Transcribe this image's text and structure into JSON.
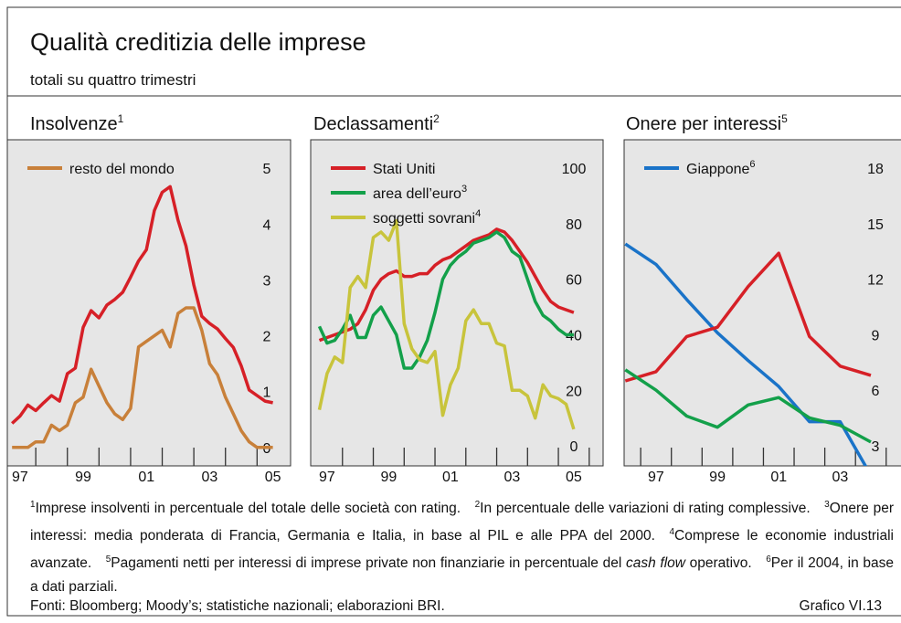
{
  "header": {
    "title": "Qualità creditizia delle imprese",
    "subtitle": "totali su quattro trimestri"
  },
  "chart_data": [
    {
      "type": "line",
      "title": "Insolvenze",
      "title_note": "1",
      "x": [
        1996.75,
        1997,
        1997.25,
        1997.5,
        1997.75,
        1998,
        1998.25,
        1998.5,
        1998.75,
        1999,
        1999.25,
        1999.5,
        1999.75,
        2000,
        2000.25,
        2000.5,
        2000.75,
        2001,
        2001.25,
        2001.5,
        2001.75,
        2002,
        2002.25,
        2002.5,
        2002.75,
        2003,
        2003.25,
        2003.5,
        2003.75,
        2004,
        2004.25,
        2004.5,
        2004.75,
        2005
      ],
      "series": [
        {
          "color": "#d62027",
          "values": [
            0.43,
            0.56,
            0.76,
            0.66,
            0.8,
            0.93,
            0.83,
            1.32,
            1.42,
            2.15,
            2.45,
            2.32,
            2.55,
            2.65,
            2.78,
            3.05,
            3.34,
            3.54,
            4.24,
            4.57,
            4.67,
            4.07,
            3.61,
            2.91,
            2.35,
            2.22,
            2.12,
            1.95,
            1.79,
            1.46,
            1.03,
            0.93,
            0.83,
            0.8
          ]
        },
        {
          "name": "resto del mondo",
          "color": "#c8803a",
          "values": [
            0,
            0,
            0,
            0.1,
            0.1,
            0.4,
            0.3,
            0.4,
            0.8,
            0.9,
            1.4,
            1.1,
            0.8,
            0.6,
            0.5,
            0.7,
            1.8,
            1.9,
            2.0,
            2.1,
            1.8,
            2.4,
            2.5,
            2.5,
            2.1,
            1.5,
            1.3,
            0.9,
            0.6,
            0.3,
            0.1,
            0,
            0,
            0
          ]
        }
      ],
      "xlim": [
        1996.6,
        2005.56
      ],
      "xticks": [
        {
          "value": 1997,
          "label": "97"
        },
        {
          "value": 1999,
          "label": "99"
        },
        {
          "value": 2001,
          "label": "01"
        },
        {
          "value": 2003,
          "label": "03"
        },
        {
          "value": 2005,
          "label": "05"
        }
      ],
      "xminor_ticks": [
        1997.5,
        1998.5,
        1999.5,
        2000.5,
        2001.5,
        2002.5,
        2003.5,
        2004.5
      ],
      "ylim": [
        -0.33,
        5.51
      ],
      "yticks": [
        0,
        1,
        2,
        3,
        4,
        5
      ],
      "legend": "top-left"
    },
    {
      "type": "line",
      "title": "Declassamenti",
      "title_note": "2",
      "x": [
        1996.75,
        1997,
        1997.25,
        1997.5,
        1997.75,
        1998,
        1998.25,
        1998.5,
        1998.75,
        1999,
        1999.25,
        1999.5,
        1999.75,
        2000,
        2000.25,
        2000.5,
        2000.75,
        2001,
        2001.25,
        2001.5,
        2001.75,
        2002,
        2002.25,
        2002.5,
        2002.75,
        2003,
        2003.25,
        2003.5,
        2003.75,
        2004,
        2004.25,
        2004.5,
        2004.75,
        2005
      ],
      "series": [
        {
          "name": "Stati Uniti",
          "color": "#d62027",
          "values": [
            38,
            39,
            40,
            41,
            42,
            44,
            49,
            56,
            60,
            62,
            63,
            61,
            61,
            62,
            62,
            65,
            67,
            68,
            70,
            72,
            74,
            75,
            76,
            78,
            77,
            74,
            70,
            66,
            61,
            56,
            52,
            50,
            49,
            48
          ]
        },
        {
          "name": "area dell’euro",
          "note": "3",
          "color": "#13a04a",
          "values": [
            43,
            37,
            38,
            42,
            47,
            39,
            39,
            47,
            50,
            45,
            40,
            28,
            28,
            32,
            38,
            48,
            60,
            65,
            68,
            70,
            73,
            74,
            75,
            77,
            75,
            70,
            68,
            60,
            52,
            47,
            45,
            42,
            40,
            40
          ]
        },
        {
          "name": "soggetti sovrani",
          "note": "4",
          "color": "#c8c43c",
          "values": [
            13,
            26,
            32,
            30,
            57,
            61,
            57,
            75,
            77,
            74,
            81,
            44,
            35,
            31,
            30,
            34,
            11,
            22,
            28,
            45,
            49,
            44,
            44,
            37,
            36,
            20,
            20,
            18,
            10,
            22,
            18,
            17,
            15,
            6
          ]
        }
      ],
      "xlim": [
        1996.47,
        2005.95
      ],
      "xticks": [
        {
          "value": 1997,
          "label": "97"
        },
        {
          "value": 1999,
          "label": "99"
        },
        {
          "value": 2001,
          "label": "01"
        },
        {
          "value": 2003,
          "label": "03"
        },
        {
          "value": 2005,
          "label": "05"
        }
      ],
      "xminor_ticks": [
        1997.5,
        1998.5,
        1999.5,
        2000.5,
        2001.5,
        2002.5,
        2003.5,
        2004.5,
        2005.5
      ],
      "ylim": [
        -7.2,
        110.2
      ],
      "yticks": [
        0,
        20,
        40,
        60,
        80,
        100
      ],
      "legend": "top-left"
    },
    {
      "type": "line",
      "title": "Onere per interessi",
      "title_note": "5",
      "x": [
        1996,
        1997,
        1998,
        1999,
        2000,
        2001,
        2002,
        2003,
        2004
      ],
      "series": [
        {
          "name": "Giappone",
          "note": "6",
          "color": "#1a73c8",
          "values": [
            13.9,
            12.8,
            10.9,
            9.1,
            7.6,
            6.2,
            4.3,
            4.3,
            1.4
          ]
        },
        {
          "color": "#d62027",
          "values": [
            6.5,
            7.0,
            8.9,
            9.4,
            11.6,
            13.4,
            8.9,
            7.3,
            6.8
          ]
        },
        {
          "color": "#13a04a",
          "values": [
            7.1,
            6.0,
            4.6,
            4.0,
            5.2,
            5.6,
            4.5,
            4.1,
            3.2
          ]
        }
      ],
      "xlim": [
        1995.96,
        2005.4
      ],
      "xticks": [
        {
          "value": 1997,
          "label": "97"
        },
        {
          "value": 1999,
          "label": "99"
        },
        {
          "value": 2001,
          "label": "01"
        },
        {
          "value": 2003,
          "label": "03"
        }
      ],
      "xminor_ticks": [
        1996.5,
        1997.5,
        1998.5,
        1999.5,
        2000.5,
        2001.5,
        2002.5,
        2003.5,
        2004.5
      ],
      "ylim": [
        1.91,
        19.53
      ],
      "yticks": [
        3,
        6,
        9,
        12,
        15,
        18
      ],
      "legend": "top-left"
    }
  ],
  "footnotes": [
    {
      "mark": "1",
      "parts": [
        {
          "text": "Imprese insolventi in percentuale del totale delle società con rating."
        }
      ]
    },
    {
      "mark": "2",
      "parts": [
        {
          "text": "In percentuale delle variazioni di rating complessive."
        }
      ]
    },
    {
      "mark": "3",
      "parts": [
        {
          "text": "Onere per interessi: media ponderata di Francia, Germania e Italia, in base al PIL e alle PPA del 2000."
        }
      ]
    },
    {
      "mark": "4",
      "parts": [
        {
          "text": "Comprese le economie industriali avanzate."
        }
      ]
    },
    {
      "mark": "5",
      "parts": [
        {
          "text": "Pagamenti netti per interessi di imprese private non finanziarie in percentuale del "
        },
        {
          "text": "cash flow",
          "italic": true
        },
        {
          "text": " operativo."
        }
      ]
    },
    {
      "mark": "6",
      "parts": [
        {
          "text": "Per il 2004, in base a dati parziali."
        }
      ]
    }
  ],
  "source": "Fonti: Bloomberg; Moody’s; statistiche nazionali; elaborazioni BRI.",
  "figure_label": "Grafico VI.13"
}
